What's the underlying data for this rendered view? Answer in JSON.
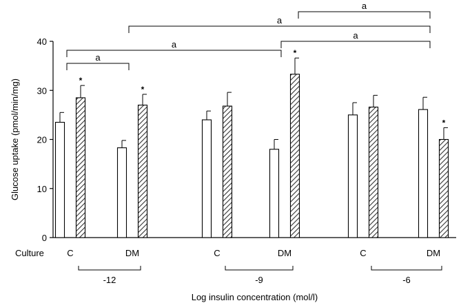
{
  "chart_data": {
    "type": "bar",
    "title": "",
    "ylabel": "Glucose uptake (pmol/min/mg)",
    "xlabel": "Log insulin concentration (mol/l)",
    "ylim": [
      0,
      40
    ],
    "yticks": [
      0,
      10,
      20,
      30,
      40
    ],
    "row_label": "Culture",
    "insulin_groups": [
      {
        "label": "-12",
        "cultures": [
          {
            "label": "C",
            "bars": [
              {
                "value": 23.5,
                "error": 2.0,
                "pattern": "open"
              },
              {
                "value": 28.5,
                "error": 2.5,
                "pattern": "hatched",
                "star": true
              }
            ]
          },
          {
            "label": "DM",
            "bars": [
              {
                "value": 18.3,
                "error": 1.5,
                "pattern": "open"
              },
              {
                "value": 27.0,
                "error": 2.2,
                "pattern": "hatched",
                "star": true
              }
            ]
          }
        ]
      },
      {
        "label": "-9",
        "cultures": [
          {
            "label": "C",
            "bars": [
              {
                "value": 24.0,
                "error": 1.8,
                "pattern": "open"
              },
              {
                "value": 26.8,
                "error": 2.8,
                "pattern": "hatched"
              }
            ]
          },
          {
            "label": "DM",
            "bars": [
              {
                "value": 18.0,
                "error": 2.0,
                "pattern": "open"
              },
              {
                "value": 33.3,
                "error": 3.3,
                "pattern": "hatched",
                "star": true
              }
            ]
          }
        ]
      },
      {
        "label": "-6",
        "cultures": [
          {
            "label": "C",
            "bars": [
              {
                "value": 25.0,
                "error": 2.5,
                "pattern": "open"
              },
              {
                "value": 26.6,
                "error": 2.4,
                "pattern": "hatched"
              }
            ]
          },
          {
            "label": "DM",
            "bars": [
              {
                "value": 26.1,
                "error": 2.5,
                "pattern": "open"
              },
              {
                "value": 20.0,
                "error": 2.4,
                "pattern": "hatched",
                "star": true
              }
            ]
          }
        ]
      }
    ],
    "significance_brackets": [
      {
        "label": "a",
        "from": {
          "group": 0,
          "culture": 0
        },
        "to": {
          "group": 0,
          "culture": 1
        },
        "level": 1
      },
      {
        "label": "a",
        "from": {
          "group": 0,
          "culture": 0
        },
        "to": {
          "group": 1,
          "culture": 1
        },
        "level": 2
      },
      {
        "label": "a",
        "from": {
          "group": 1,
          "culture": 1
        },
        "to": {
          "group": 2,
          "culture": 1
        },
        "level": 3
      },
      {
        "label": "a",
        "from": {
          "group": 0,
          "culture": 1
        },
        "to": {
          "group": 2,
          "culture": 1
        },
        "level": 4
      },
      {
        "label": "a",
        "from": {
          "group": 1,
          "culture": 1
        },
        "to": {
          "group": 2,
          "culture": 1
        },
        "level": 5
      }
    ],
    "star_symbol": "*"
  }
}
